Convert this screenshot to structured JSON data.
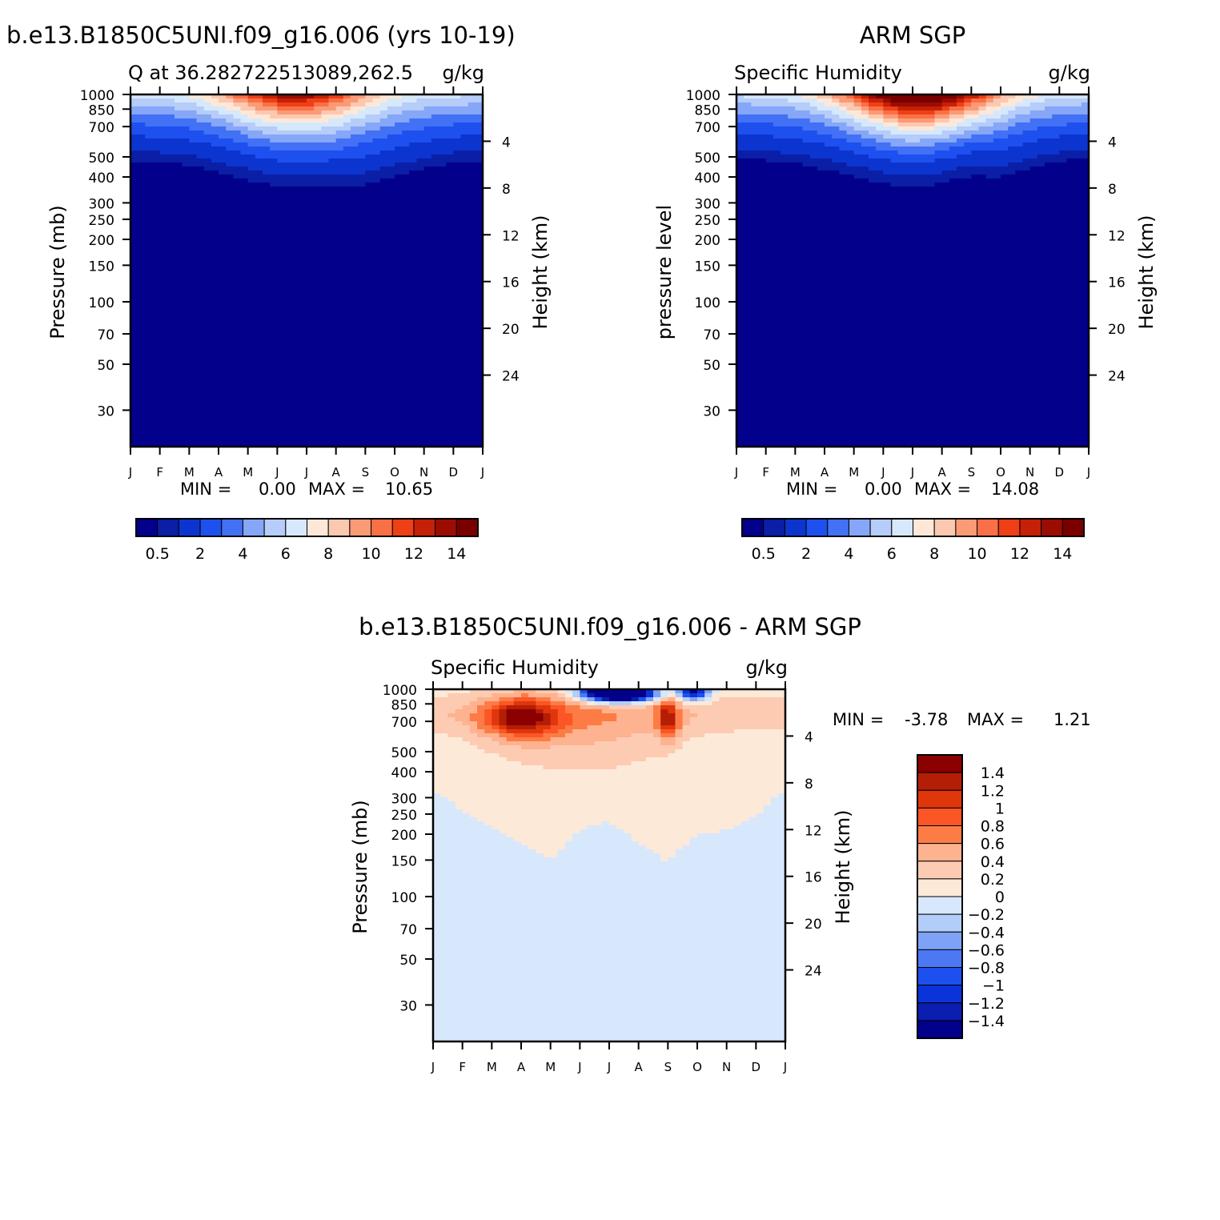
{
  "chart_data": [
    {
      "type": "heatmap",
      "panel": "model",
      "title": "b.e13.B1850C5UNI.f09_g16.006 (yrs 10-19)",
      "left_string": "Q at 36.282722513089,262.5",
      "right_string": "g/kg",
      "ylabel": "Pressure (mb)",
      "ylabel_right": "Height (km)",
      "x_ticks": [
        "J",
        "F",
        "M",
        "A",
        "M",
        "J",
        "J",
        "A",
        "S",
        "O",
        "N",
        "D",
        "J"
      ],
      "y_ticks": [
        "30",
        "50",
        "70",
        "100",
        "150",
        "200",
        "250",
        "300",
        "400",
        "500",
        "700",
        "850",
        "1000"
      ],
      "y_ticks_right": [
        "24",
        "20",
        "16",
        "12",
        "8",
        "4"
      ],
      "stats": {
        "min_label": "MIN =",
        "min": "0.00",
        "max_label": "MAX =",
        "max": "10.65"
      },
      "colorbar_labels": [
        "0.5",
        "2",
        "4",
        "6",
        "8",
        "10",
        "12",
        "14"
      ],
      "peak_month": 5.6,
      "peak_value": 10.65,
      "moist_top_mb_by_month": [
        480,
        470,
        455,
        420,
        385,
        360,
        355,
        355,
        365,
        400,
        440,
        470,
        480
      ]
    },
    {
      "type": "heatmap",
      "panel": "obs",
      "title": "ARM SGP",
      "left_string": "Specific Humidity",
      "right_string": "g/kg",
      "ylabel": "pressure level",
      "ylabel_right": "Height (km)",
      "x_ticks": [
        "J",
        "F",
        "M",
        "A",
        "M",
        "J",
        "J",
        "A",
        "S",
        "O",
        "N",
        "D",
        "J"
      ],
      "y_ticks": [
        "30",
        "50",
        "70",
        "100",
        "150",
        "200",
        "250",
        "300",
        "400",
        "500",
        "700",
        "850",
        "1000"
      ],
      "y_ticks_right": [
        "24",
        "20",
        "16",
        "12",
        "8",
        "4"
      ],
      "stats": {
        "min_label": "MIN =",
        "min": "0.00",
        "max_label": "MAX =",
        "max": "14.08"
      },
      "colorbar_labels": [
        "0.5",
        "2",
        "4",
        "6",
        "8",
        "10",
        "12",
        "14"
      ],
      "peak_month": 6.2,
      "peak_value": 14.08,
      "moist_top_mb_by_month": [
        490,
        480,
        465,
        435,
        400,
        375,
        355,
        375,
        405,
        400,
        440,
        475,
        490
      ]
    },
    {
      "type": "heatmap",
      "panel": "difference",
      "title": "b.e13.B1850C5UNI.f09_g16.006 - ARM SGP",
      "left_string": "Specific Humidity",
      "right_string": "g/kg",
      "ylabel": "Pressure (mb)",
      "ylabel_right": "Height (km)",
      "x_ticks": [
        "J",
        "F",
        "M",
        "A",
        "M",
        "J",
        "J",
        "A",
        "S",
        "O",
        "N",
        "D",
        "J"
      ],
      "y_ticks": [
        "30",
        "50",
        "70",
        "100",
        "150",
        "200",
        "250",
        "300",
        "400",
        "500",
        "700",
        "850",
        "1000"
      ],
      "y_ticks_right": [
        "24",
        "20",
        "16",
        "12",
        "8",
        "4"
      ],
      "stats": {
        "min_label": "MIN =",
        "min": "-3.78",
        "max_label": "MAX =",
        "max": "1.21"
      },
      "colorbar_labels": [
        "1.4",
        "1.2",
        "1",
        "0.8",
        "0.6",
        "0.4",
        "0.2",
        "0",
        "−0.2",
        "−0.4",
        "−0.6",
        "−0.8",
        "−1",
        "−1.2",
        "−1.4"
      ],
      "positive_features": [
        {
          "month": 3.0,
          "pressure_mb": 730,
          "value": 1.21
        },
        {
          "month": 8.0,
          "pressure_mb": 720,
          "value": 1.1
        }
      ],
      "negative_features": [
        {
          "month": 6.3,
          "pressure_mb": 960,
          "value": -3.78
        },
        {
          "month": 8.9,
          "pressure_mb": 970,
          "value": -1.6
        }
      ],
      "positive_top_mb_by_month": [
        330,
        260,
        220,
        180,
        150,
        210,
        230,
        180,
        145,
        200,
        210,
        240,
        330
      ]
    }
  ],
  "colors": {
    "seq": [
      "#03008c",
      "#0a1ea6",
      "#0c35cf",
      "#1e50ef",
      "#4271f5",
      "#86a6f8",
      "#b6cdf9",
      "#d6e8fb",
      "#fde8d8",
      "#fcc8b0",
      "#fb9b76",
      "#f97046",
      "#ee3f17",
      "#c42106",
      "#9b0c02",
      "#7a0000"
    ],
    "div": [
      "#8b0000",
      "#b51e06",
      "#e0360b",
      "#fc5526",
      "#fd7c46",
      "#fdb290",
      "#fdcbb2",
      "#fde9d8",
      "#d7e8fc",
      "#b3cdfa",
      "#7ea3f6",
      "#4c78f4",
      "#1e50ef",
      "#0a33d9",
      "#0a1eb0",
      "#03008c"
    ]
  }
}
